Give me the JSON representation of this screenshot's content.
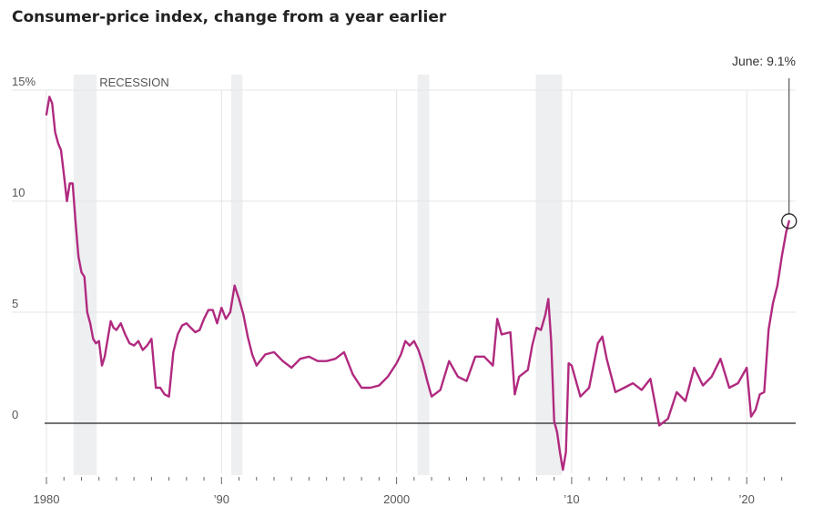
{
  "chart_data": {
    "type": "line",
    "title": "Consumer-price index, change from a year earlier",
    "ylim": [
      -2.5,
      15
    ],
    "xlim": [
      1980,
      2022.8
    ],
    "y_ticks": [
      {
        "value": 15,
        "label": "15%"
      },
      {
        "value": 10,
        "label": "10"
      },
      {
        "value": 5,
        "label": "5"
      },
      {
        "value": 0,
        "label": "0"
      }
    ],
    "x_ticks": [
      {
        "value": 1980,
        "label": "1980"
      },
      {
        "value": 1990,
        "label": "’90"
      },
      {
        "value": 2000,
        "label": "2000"
      },
      {
        "value": 2010,
        "label": "’10"
      },
      {
        "value": 2020,
        "label": "’20"
      }
    ],
    "recession_label": "RECESSION",
    "recessions": [
      [
        1981.55,
        1982.87
      ],
      [
        1990.55,
        1991.2
      ],
      [
        2001.2,
        2001.87
      ],
      [
        2007.95,
        2009.45
      ]
    ],
    "annotation": {
      "label": "June: 9.1%",
      "x": 2022.42,
      "y": 9.1
    },
    "colors": {
      "line": "#b02a7f",
      "recession": "#eeeff1",
      "grid": "#e4e4e4",
      "baseline": "#222222"
    },
    "series": [
      {
        "x": [
          1980.0,
          1980.17,
          1980.33,
          1980.5,
          1980.67,
          1980.83,
          1981.0,
          1981.17,
          1981.33,
          1981.5,
          1981.67,
          1981.83,
          1982.0,
          1982.17,
          1982.33,
          1982.5,
          1982.67,
          1982.83,
          1983.0,
          1983.17,
          1983.33,
          1983.5,
          1983.67,
          1983.83,
          1984.0,
          1984.25,
          1984.5,
          1984.75,
          1985.0,
          1985.25,
          1985.5,
          1985.75,
          1986.0,
          1986.25,
          1986.5,
          1986.75,
          1987.0,
          1987.25,
          1987.5,
          1987.75,
          1988.0,
          1988.25,
          1988.5,
          1988.75,
          1989.0,
          1989.25,
          1989.5,
          1989.75,
          1990.0,
          1990.25,
          1990.5,
          1990.75,
          1991.0,
          1991.25,
          1991.5,
          1991.75,
          1992.0,
          1992.5,
          1993.0,
          1993.5,
          1994.0,
          1994.5,
          1995.0,
          1995.5,
          1996.0,
          1996.5,
          1997.0,
          1997.5,
          1998.0,
          1998.5,
          1999.0,
          1999.5,
          2000.0,
          2000.25,
          2000.5,
          2000.75,
          2001.0,
          2001.25,
          2001.5,
          2001.75,
          2002.0,
          2002.5,
          2003.0,
          2003.5,
          2004.0,
          2004.5,
          2005.0,
          2005.5,
          2005.75,
          2006.0,
          2006.5,
          2006.75,
          2007.0,
          2007.5,
          2007.75,
          2008.0,
          2008.25,
          2008.5,
          2008.67,
          2008.83,
          2009.0,
          2009.17,
          2009.33,
          2009.5,
          2009.67,
          2009.83,
          2010.0,
          2010.5,
          2011.0,
          2011.5,
          2011.75,
          2012.0,
          2012.5,
          2013.0,
          2013.5,
          2014.0,
          2014.5,
          2015.0,
          2015.5,
          2016.0,
          2016.5,
          2017.0,
          2017.5,
          2018.0,
          2018.5,
          2019.0,
          2019.5,
          2020.0,
          2020.25,
          2020.5,
          2020.75,
          2021.0,
          2021.25,
          2021.5,
          2021.75,
          2022.0,
          2022.25,
          2022.42
        ],
        "y": [
          13.9,
          14.7,
          14.4,
          13.1,
          12.6,
          12.3,
          11.2,
          10.0,
          10.8,
          10.8,
          9.0,
          7.5,
          6.8,
          6.6,
          5.0,
          4.5,
          3.8,
          3.6,
          3.7,
          2.6,
          3.0,
          3.8,
          4.6,
          4.3,
          4.2,
          4.5,
          4.0,
          3.6,
          3.5,
          3.7,
          3.3,
          3.5,
          3.8,
          1.6,
          1.6,
          1.3,
          1.2,
          3.2,
          4.0,
          4.4,
          4.5,
          4.3,
          4.1,
          4.2,
          4.7,
          5.1,
          5.1,
          4.5,
          5.2,
          4.7,
          5.0,
          6.2,
          5.6,
          4.9,
          3.9,
          3.1,
          2.6,
          3.1,
          3.2,
          2.8,
          2.5,
          2.9,
          3.0,
          2.8,
          2.8,
          2.9,
          3.2,
          2.2,
          1.6,
          1.6,
          1.7,
          2.1,
          2.7,
          3.1,
          3.7,
          3.5,
          3.7,
          3.3,
          2.7,
          1.9,
          1.2,
          1.5,
          2.8,
          2.1,
          1.9,
          3.0,
          3.0,
          2.6,
          4.7,
          4.0,
          4.1,
          1.3,
          2.1,
          2.4,
          3.5,
          4.3,
          4.2,
          4.9,
          5.6,
          3.7,
          0.1,
          -0.4,
          -1.3,
          -2.1,
          -1.3,
          2.7,
          2.6,
          1.2,
          1.6,
          3.6,
          3.9,
          2.9,
          1.4,
          1.6,
          1.8,
          1.5,
          2.0,
          -0.1,
          0.2,
          1.4,
          1.0,
          2.5,
          1.7,
          2.1,
          2.9,
          1.6,
          1.8,
          2.5,
          0.3,
          0.6,
          1.3,
          1.4,
          4.2,
          5.4,
          6.2,
          7.5,
          8.6,
          9.1
        ]
      }
    ]
  }
}
